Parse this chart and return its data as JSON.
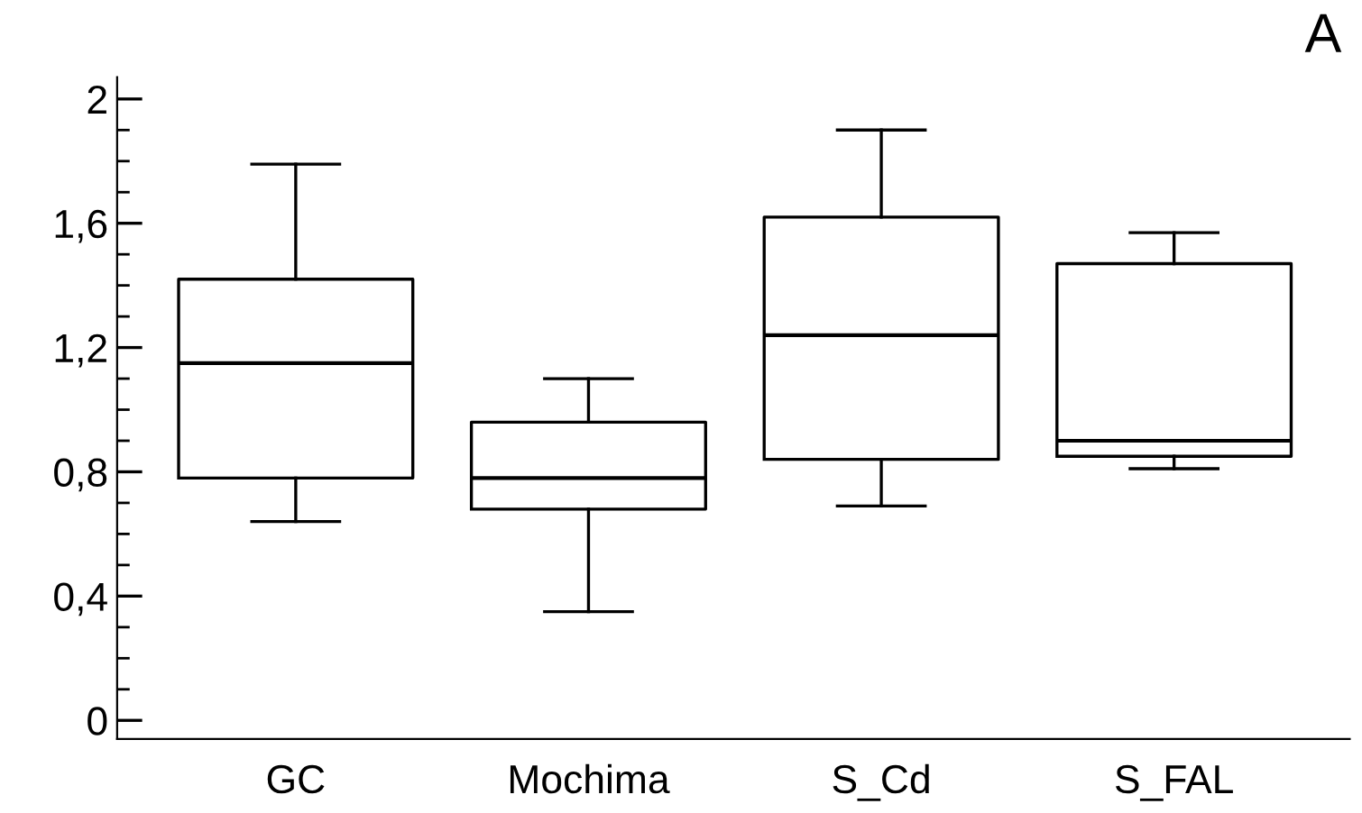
{
  "chart_data": {
    "type": "box",
    "categories": [
      "GC",
      "Mochima",
      "S_Cd",
      "S_FAL"
    ],
    "boxes": [
      {
        "low": 0.64,
        "q1": 0.78,
        "median": 1.15,
        "q3": 1.42,
        "high": 1.79
      },
      {
        "low": 0.35,
        "q1": 0.68,
        "median": 0.78,
        "q3": 0.96,
        "high": 1.1
      },
      {
        "low": 0.69,
        "q1": 0.84,
        "median": 1.24,
        "q3": 1.62,
        "high": 1.9
      },
      {
        "low": 0.81,
        "q1": 0.85,
        "median": 0.9,
        "q3": 1.47,
        "high": 1.57
      }
    ],
    "ylim": [
      -0.06,
      2.07
    ],
    "yticks": [
      0,
      {
        "value": 0.4,
        "label": "0,4"
      },
      {
        "value": 0.8,
        "label": "0,8"
      },
      {
        "value": 1.2,
        "label": "1,2"
      },
      {
        "value": 1.6,
        "label": "1,6"
      },
      2
    ],
    "grid": false,
    "legend": false,
    "annotations": [
      "A"
    ]
  }
}
